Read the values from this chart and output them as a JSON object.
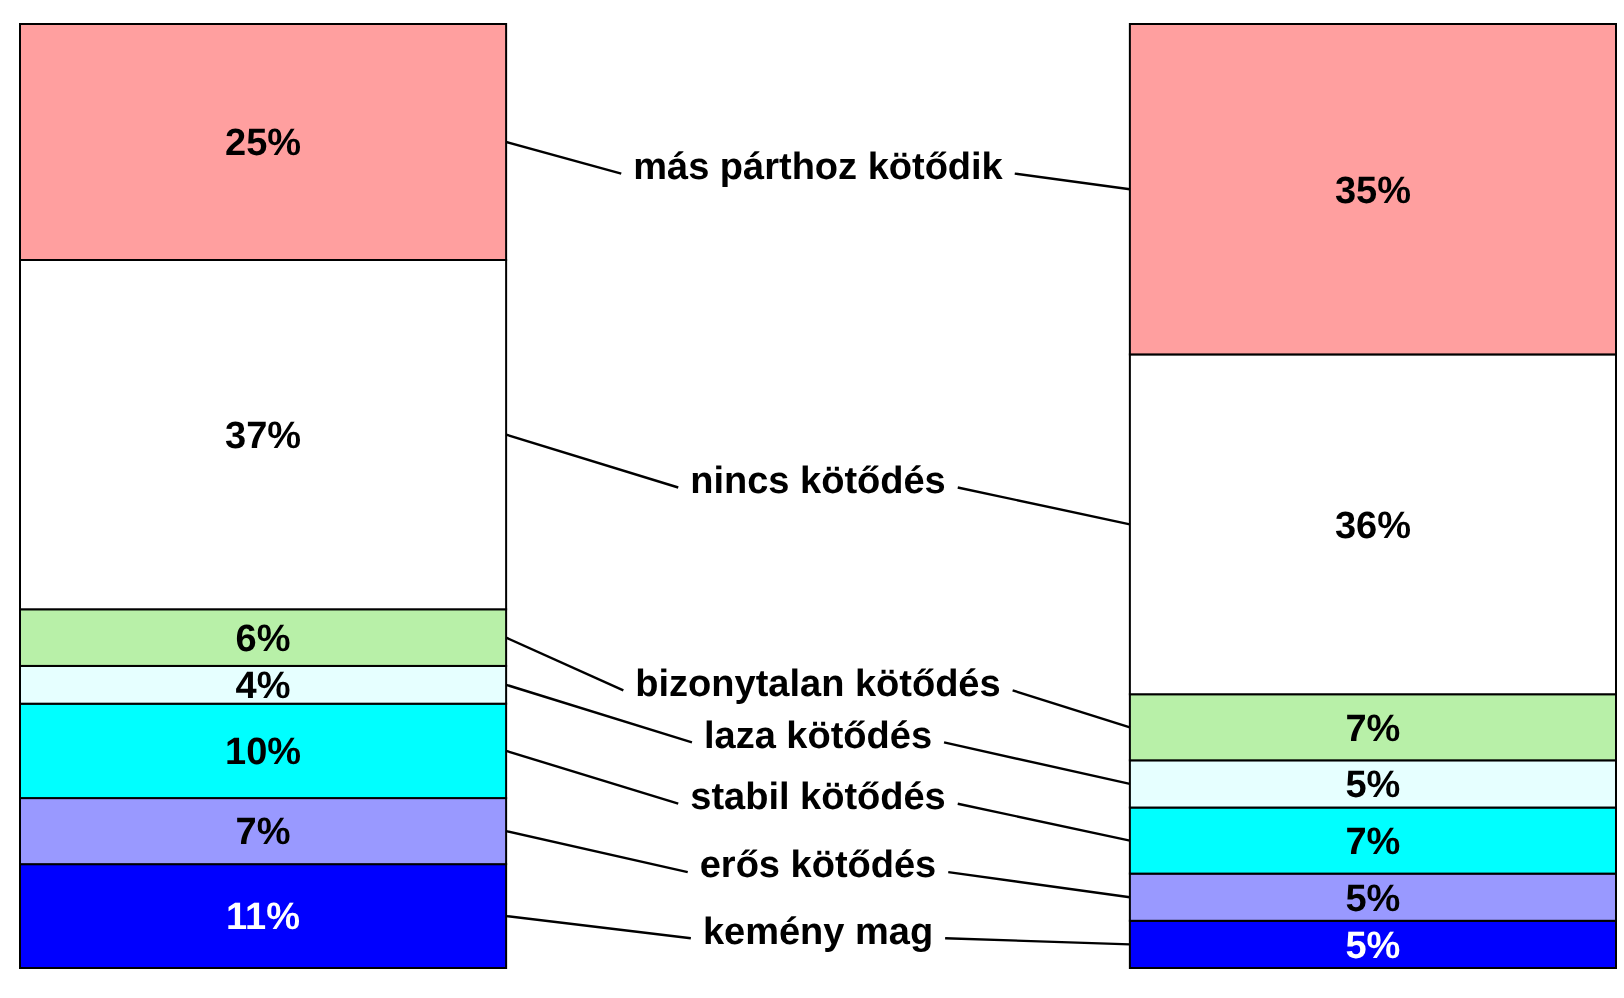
{
  "chart_data": {
    "type": "bar",
    "stacked": true,
    "categories": [
      null,
      null
    ],
    "legend": "center",
    "series": [
      {
        "name": "kemény mag",
        "color": "#0000ff",
        "values": [
          11,
          5
        ],
        "value_labels": [
          "11%",
          "5%"
        ]
      },
      {
        "name": "erős kötődés",
        "color": "#9999ff",
        "values": [
          7,
          5
        ],
        "value_labels": [
          "7%",
          "5%"
        ]
      },
      {
        "name": "stabil kötődés",
        "color": "#00ffff",
        "values": [
          10,
          7
        ],
        "value_labels": [
          "10%",
          "7%"
        ]
      },
      {
        "name": "laza kötődés",
        "color": "#e6ffff",
        "values": [
          4,
          5
        ],
        "value_labels": [
          "4%",
          "5%"
        ]
      },
      {
        "name": "bizonytalan kötődés",
        "color": "#b8f0a8",
        "values": [
          6,
          7
        ],
        "value_labels": [
          "6%",
          "7%"
        ]
      },
      {
        "name": "nincs kötődés",
        "color": "#ffffff",
        "values": [
          37,
          36
        ],
        "value_labels": [
          "37%",
          "36%"
        ]
      },
      {
        "name": "más párthoz kötődik",
        "color": "#ff9f9f",
        "values": [
          25,
          35
        ],
        "value_labels": [
          "25%",
          "35%"
        ]
      }
    ]
  }
}
